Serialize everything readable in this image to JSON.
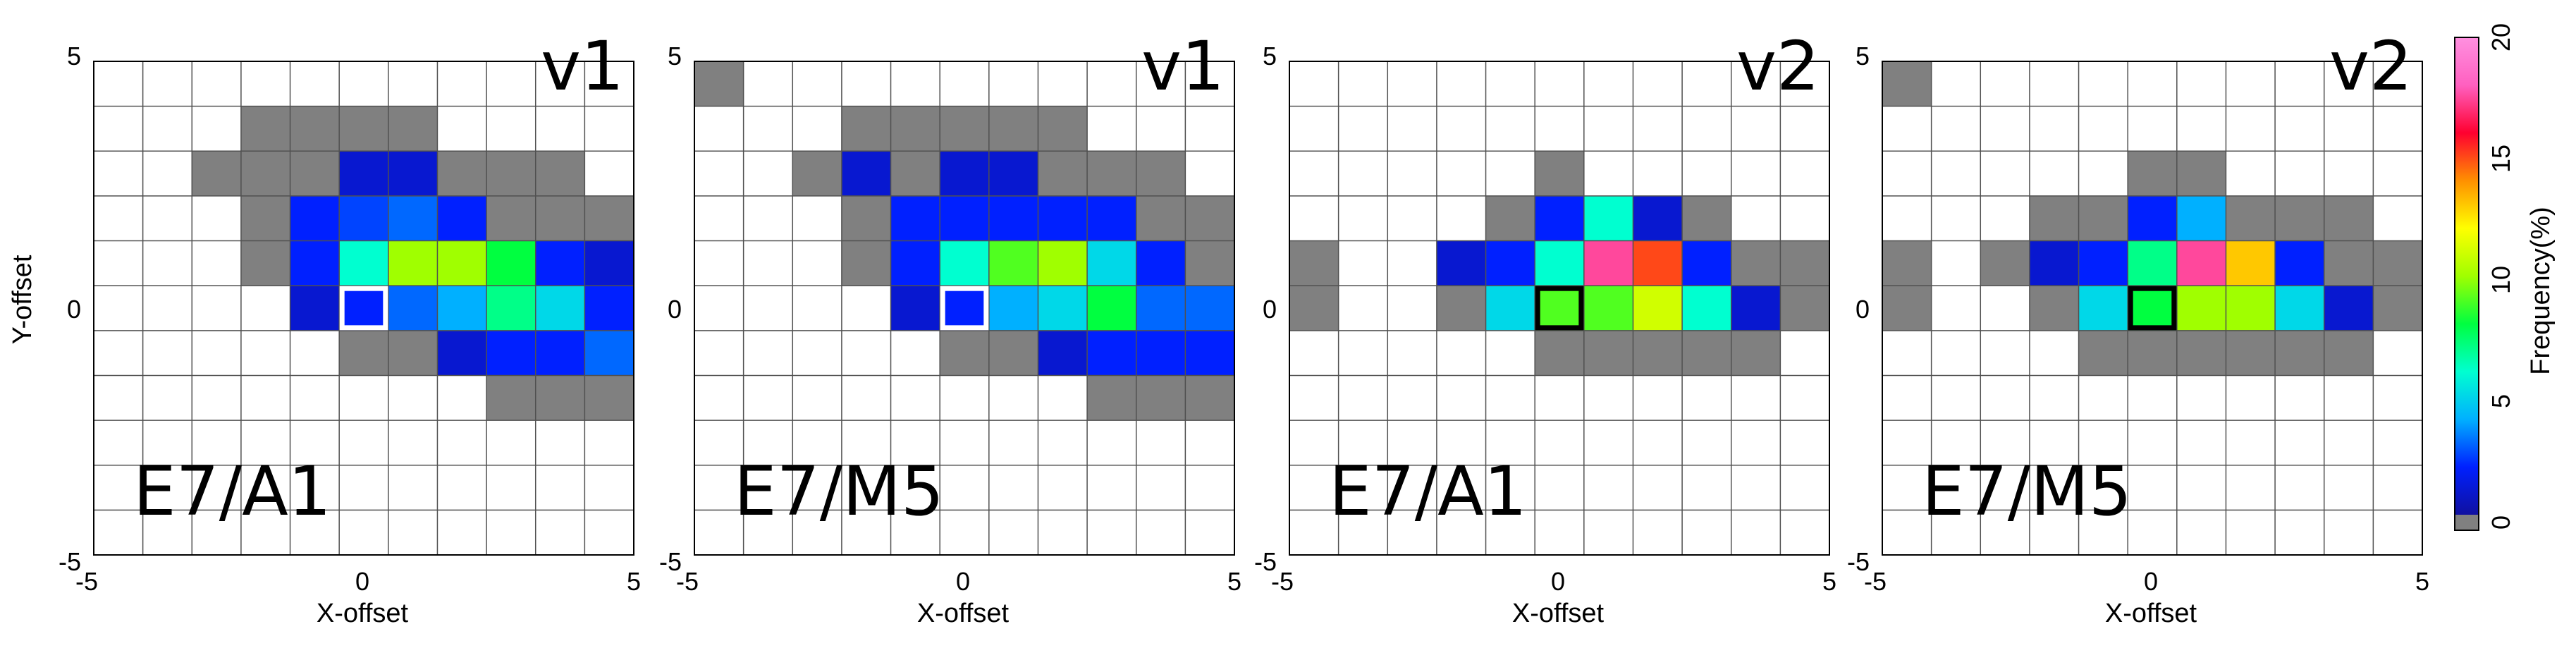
{
  "chart_data": [
    {
      "type": "heatmap",
      "version_label": "v1",
      "condition_label": "E7/A1",
      "xlabel": "X-offset",
      "ylabel": "Y-offset",
      "xlim": [
        -5,
        5
      ],
      "ylim": [
        -5,
        5
      ],
      "x_ticks": [
        "-5",
        "0",
        "5"
      ],
      "y_ticks": [
        "5",
        "0",
        "-5"
      ],
      "highlight_cell": {
        "x": 0,
        "y": 0,
        "outline": "#ffffff"
      },
      "cells": [
        {
          "x": -2,
          "y": 4,
          "v": 0
        },
        {
          "x": -1,
          "y": 4,
          "v": 0
        },
        {
          "x": 0,
          "y": 4,
          "v": 0
        },
        {
          "x": 1,
          "y": 4,
          "v": 0
        },
        {
          "x": -3,
          "y": 3,
          "v": 0
        },
        {
          "x": -2,
          "y": 3,
          "v": 0
        },
        {
          "x": -1,
          "y": 3,
          "v": 0
        },
        {
          "x": 0,
          "y": 3,
          "v": 1
        },
        {
          "x": 1,
          "y": 3,
          "v": 1
        },
        {
          "x": 2,
          "y": 3,
          "v": 0
        },
        {
          "x": 3,
          "y": 3,
          "v": 0
        },
        {
          "x": 4,
          "y": 3,
          "v": 0
        },
        {
          "x": -2,
          "y": 2,
          "v": 0
        },
        {
          "x": -1,
          "y": 2,
          "v": 2
        },
        {
          "x": 0,
          "y": 2,
          "v": 2.5
        },
        {
          "x": 1,
          "y": 2,
          "v": 3
        },
        {
          "x": 2,
          "y": 2,
          "v": 2
        },
        {
          "x": 3,
          "y": 2,
          "v": 0
        },
        {
          "x": 4,
          "y": 2,
          "v": 0
        },
        {
          "x": 5,
          "y": 2,
          "v": 0
        },
        {
          "x": -2,
          "y": 1,
          "v": 0
        },
        {
          "x": -1,
          "y": 1,
          "v": 2
        },
        {
          "x": 0,
          "y": 1,
          "v": 6
        },
        {
          "x": 1,
          "y": 1,
          "v": 10
        },
        {
          "x": 2,
          "y": 1,
          "v": 10
        },
        {
          "x": 3,
          "y": 1,
          "v": 8
        },
        {
          "x": 4,
          "y": 1,
          "v": 2
        },
        {
          "x": 5,
          "y": 1,
          "v": 1
        },
        {
          "x": -1,
          "y": 0,
          "v": 1
        },
        {
          "x": 0,
          "y": 0,
          "v": 2
        },
        {
          "x": 1,
          "y": 0,
          "v": 3
        },
        {
          "x": 2,
          "y": 0,
          "v": 4
        },
        {
          "x": 3,
          "y": 0,
          "v": 7
        },
        {
          "x": 4,
          "y": 0,
          "v": 5
        },
        {
          "x": 5,
          "y": 0,
          "v": 2
        },
        {
          "x": 0,
          "y": -1,
          "v": 0
        },
        {
          "x": 1,
          "y": -1,
          "v": 0
        },
        {
          "x": 2,
          "y": -1,
          "v": 1
        },
        {
          "x": 3,
          "y": -1,
          "v": 2
        },
        {
          "x": 4,
          "y": -1,
          "v": 2
        },
        {
          "x": 5,
          "y": -1,
          "v": 3
        },
        {
          "x": 3,
          "y": -2,
          "v": 0
        },
        {
          "x": 4,
          "y": -2,
          "v": 0
        },
        {
          "x": 5,
          "y": -2,
          "v": 0
        }
      ]
    },
    {
      "type": "heatmap",
      "version_label": "v1",
      "condition_label": "E7/M5",
      "xlabel": "X-offset",
      "ylabel": "",
      "xlim": [
        -5,
        5
      ],
      "ylim": [
        -5,
        5
      ],
      "x_ticks": [
        "-5",
        "0",
        "5"
      ],
      "y_ticks": [
        "5",
        "0",
        "-5"
      ],
      "highlight_cell": {
        "x": 0,
        "y": 0,
        "outline": "#ffffff"
      },
      "cells": [
        {
          "x": -5,
          "y": 5,
          "v": 0
        },
        {
          "x": -2,
          "y": 4,
          "v": 0
        },
        {
          "x": -1,
          "y": 4,
          "v": 0
        },
        {
          "x": 0,
          "y": 4,
          "v": 0
        },
        {
          "x": 1,
          "y": 4,
          "v": 0
        },
        {
          "x": 2,
          "y": 4,
          "v": 0
        },
        {
          "x": -3,
          "y": 3,
          "v": 0
        },
        {
          "x": -2,
          "y": 3,
          "v": 1
        },
        {
          "x": -1,
          "y": 3,
          "v": 0
        },
        {
          "x": 0,
          "y": 3,
          "v": 1
        },
        {
          "x": 1,
          "y": 3,
          "v": 1
        },
        {
          "x": 2,
          "y": 3,
          "v": 0
        },
        {
          "x": 3,
          "y": 3,
          "v": 0
        },
        {
          "x": 4,
          "y": 3,
          "v": 0
        },
        {
          "x": -2,
          "y": 2,
          "v": 0
        },
        {
          "x": -1,
          "y": 2,
          "v": 2
        },
        {
          "x": 0,
          "y": 2,
          "v": 2
        },
        {
          "x": 1,
          "y": 2,
          "v": 2
        },
        {
          "x": 2,
          "y": 2,
          "v": 2
        },
        {
          "x": 3,
          "y": 2,
          "v": 2
        },
        {
          "x": 4,
          "y": 2,
          "v": 0
        },
        {
          "x": 5,
          "y": 2,
          "v": 0
        },
        {
          "x": -2,
          "y": 1,
          "v": 0
        },
        {
          "x": -1,
          "y": 1,
          "v": 2
        },
        {
          "x": 0,
          "y": 1,
          "v": 6
        },
        {
          "x": 1,
          "y": 1,
          "v": 9
        },
        {
          "x": 2,
          "y": 1,
          "v": 10
        },
        {
          "x": 3,
          "y": 1,
          "v": 5
        },
        {
          "x": 4,
          "y": 1,
          "v": 2
        },
        {
          "x": 5,
          "y": 1,
          "v": 0
        },
        {
          "x": -1,
          "y": 0,
          "v": 1
        },
        {
          "x": 0,
          "y": 0,
          "v": 2
        },
        {
          "x": 1,
          "y": 0,
          "v": 4
        },
        {
          "x": 2,
          "y": 0,
          "v": 5
        },
        {
          "x": 3,
          "y": 0,
          "v": 8
        },
        {
          "x": 4,
          "y": 0,
          "v": 3
        },
        {
          "x": 5,
          "y": 0,
          "v": 3
        },
        {
          "x": 0,
          "y": -1,
          "v": 0
        },
        {
          "x": 1,
          "y": -1,
          "v": 0
        },
        {
          "x": 2,
          "y": -1,
          "v": 1
        },
        {
          "x": 3,
          "y": -1,
          "v": 2
        },
        {
          "x": 4,
          "y": -1,
          "v": 2
        },
        {
          "x": 5,
          "y": -1,
          "v": 2
        },
        {
          "x": 3,
          "y": -2,
          "v": 0
        },
        {
          "x": 4,
          "y": -2,
          "v": 0
        },
        {
          "x": 5,
          "y": -2,
          "v": 0
        }
      ]
    },
    {
      "type": "heatmap",
      "version_label": "v2",
      "condition_label": "E7/A1",
      "xlabel": "X-offset",
      "ylabel": "",
      "xlim": [
        -5,
        5
      ],
      "ylim": [
        -5,
        5
      ],
      "x_ticks": [
        "-5",
        "0",
        "5"
      ],
      "y_ticks": [
        "5",
        "0",
        "-5"
      ],
      "highlight_cell": {
        "x": 0,
        "y": 0,
        "outline": "#000000"
      },
      "cells": [
        {
          "x": 0,
          "y": 3,
          "v": 0
        },
        {
          "x": -1,
          "y": 2,
          "v": 0
        },
        {
          "x": 0,
          "y": 2,
          "v": 2
        },
        {
          "x": 1,
          "y": 2,
          "v": 6
        },
        {
          "x": 2,
          "y": 2,
          "v": 1
        },
        {
          "x": 3,
          "y": 2,
          "v": 0
        },
        {
          "x": -5,
          "y": 1,
          "v": 0
        },
        {
          "x": -2,
          "y": 1,
          "v": 1
        },
        {
          "x": -1,
          "y": 1,
          "v": 2
        },
        {
          "x": 0,
          "y": 1,
          "v": 6
        },
        {
          "x": 1,
          "y": 1,
          "v": 17.5
        },
        {
          "x": 2,
          "y": 1,
          "v": 15
        },
        {
          "x": 3,
          "y": 1,
          "v": 2
        },
        {
          "x": 4,
          "y": 1,
          "v": 0
        },
        {
          "x": 5,
          "y": 1,
          "v": 0
        },
        {
          "x": -5,
          "y": 0,
          "v": 0
        },
        {
          "x": -2,
          "y": 0,
          "v": 0
        },
        {
          "x": -1,
          "y": 0,
          "v": 5
        },
        {
          "x": 0,
          "y": 0,
          "v": 9
        },
        {
          "x": 1,
          "y": 0,
          "v": 9
        },
        {
          "x": 2,
          "y": 0,
          "v": 11
        },
        {
          "x": 3,
          "y": 0,
          "v": 6
        },
        {
          "x": 4,
          "y": 0,
          "v": 1
        },
        {
          "x": 5,
          "y": 0,
          "v": 0
        },
        {
          "x": 0,
          "y": -1,
          "v": 0
        },
        {
          "x": 1,
          "y": -1,
          "v": 0
        },
        {
          "x": 2,
          "y": -1,
          "v": 0
        },
        {
          "x": 3,
          "y": -1,
          "v": 0
        },
        {
          "x": 4,
          "y": -1,
          "v": 0
        }
      ]
    },
    {
      "type": "heatmap",
      "version_label": "v2",
      "condition_label": "E7/M5",
      "xlabel": "X-offset",
      "ylabel": "",
      "xlim": [
        -5,
        5
      ],
      "ylim": [
        -5,
        5
      ],
      "x_ticks": [
        "-5",
        "0",
        "5"
      ],
      "y_ticks": [
        "5",
        "0",
        "-5"
      ],
      "highlight_cell": {
        "x": 0,
        "y": 0,
        "outline": "#000000"
      },
      "cells": [
        {
          "x": -5,
          "y": 5,
          "v": 0
        },
        {
          "x": 0,
          "y": 3,
          "v": 0
        },
        {
          "x": 1,
          "y": 3,
          "v": 0
        },
        {
          "x": -2,
          "y": 2,
          "v": 0
        },
        {
          "x": -1,
          "y": 2,
          "v": 0
        },
        {
          "x": 0,
          "y": 2,
          "v": 2
        },
        {
          "x": 1,
          "y": 2,
          "v": 4
        },
        {
          "x": 2,
          "y": 2,
          "v": 0
        },
        {
          "x": 3,
          "y": 2,
          "v": 0
        },
        {
          "x": 4,
          "y": 2,
          "v": 0
        },
        {
          "x": -5,
          "y": 1,
          "v": 0
        },
        {
          "x": -3,
          "y": 1,
          "v": 0
        },
        {
          "x": -2,
          "y": 1,
          "v": 1
        },
        {
          "x": -1,
          "y": 1,
          "v": 2
        },
        {
          "x": 0,
          "y": 1,
          "v": 7
        },
        {
          "x": 1,
          "y": 1,
          "v": 17.5
        },
        {
          "x": 2,
          "y": 1,
          "v": 13
        },
        {
          "x": 3,
          "y": 1,
          "v": 2
        },
        {
          "x": 4,
          "y": 1,
          "v": 0
        },
        {
          "x": 5,
          "y": 1,
          "v": 0
        },
        {
          "x": -5,
          "y": 0,
          "v": 0
        },
        {
          "x": -2,
          "y": 0,
          "v": 0
        },
        {
          "x": -1,
          "y": 0,
          "v": 5
        },
        {
          "x": 0,
          "y": 0,
          "v": 8
        },
        {
          "x": 1,
          "y": 0,
          "v": 10
        },
        {
          "x": 2,
          "y": 0,
          "v": 10
        },
        {
          "x": 3,
          "y": 0,
          "v": 5
        },
        {
          "x": 4,
          "y": 0,
          "v": 1
        },
        {
          "x": 5,
          "y": 0,
          "v": 0
        },
        {
          "x": -1,
          "y": -1,
          "v": 0
        },
        {
          "x": 0,
          "y": -1,
          "v": 0
        },
        {
          "x": 1,
          "y": -1,
          "v": 0
        },
        {
          "x": 2,
          "y": -1,
          "v": 0
        },
        {
          "x": 3,
          "y": -1,
          "v": 0
        },
        {
          "x": 4,
          "y": -1,
          "v": 0
        }
      ]
    }
  ],
  "colorbar": {
    "label": "Frequency(%)",
    "ticks": [
      "0",
      "5",
      "10",
      "15",
      "20"
    ],
    "range": [
      0,
      20
    ],
    "zero_color": "#808080",
    "colors": [
      "#1010a0",
      "#0020ff",
      "#00b0ff",
      "#00ffd0",
      "#00ff40",
      "#a0ff00",
      "#ffff00",
      "#ff9000",
      "#ff0030",
      "#ff60c0",
      "#ff90e0"
    ]
  },
  "style": {
    "empty_cell": "#ffffff",
    "grid_line": "#505050",
    "zero_cell": "#808080"
  }
}
